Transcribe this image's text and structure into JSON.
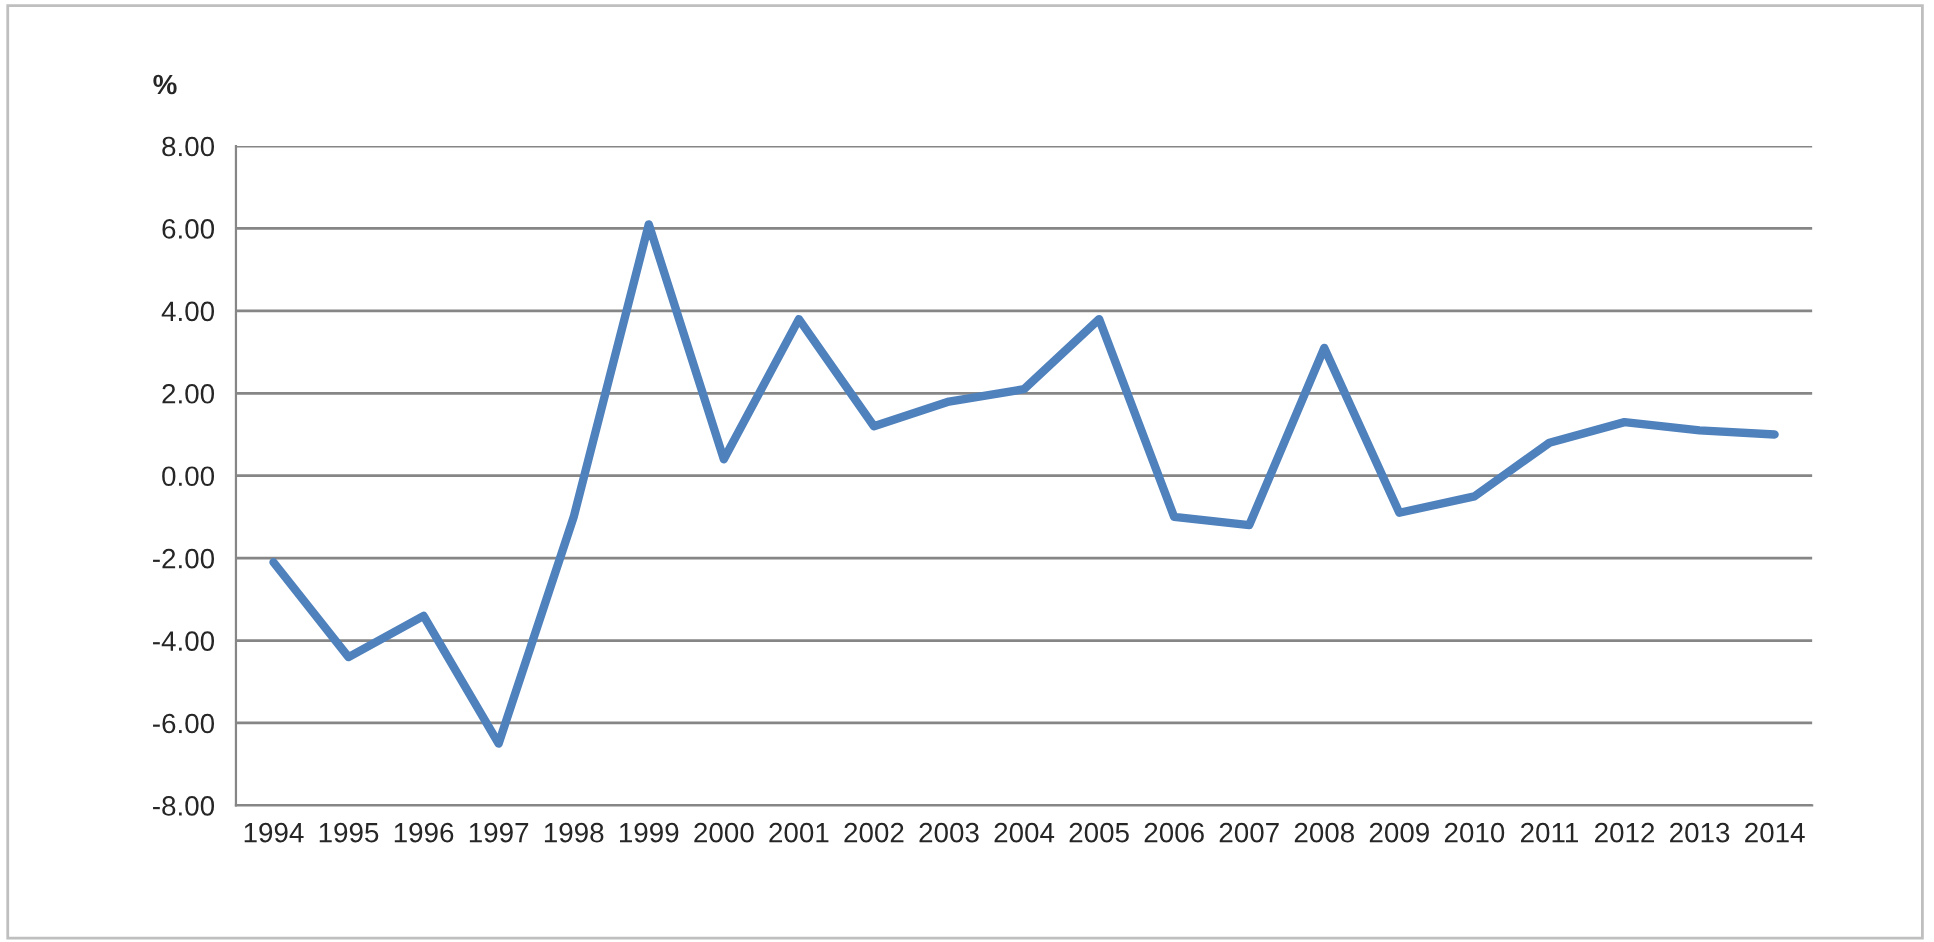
{
  "chart_data": {
    "type": "line",
    "ylabel": "%",
    "categories": [
      "1994",
      "1995",
      "1996",
      "1997",
      "1998",
      "1999",
      "2000",
      "2001",
      "2002",
      "2003",
      "2004",
      "2005",
      "2006",
      "2007",
      "2008",
      "2009",
      "2010",
      "2011",
      "2012",
      "2013",
      "2014"
    ],
    "series": [
      {
        "color": "#4f81bd",
        "values": [
          -2.1,
          -4.4,
          -3.4,
          -6.5,
          -1.0,
          6.1,
          0.4,
          3.8,
          1.2,
          1.8,
          2.1,
          3.8,
          -1.0,
          -1.2,
          3.1,
          -0.9,
          -0.5,
          0.8,
          1.3,
          1.1,
          1.0
        ]
      }
    ],
    "ylim": [
      -8,
      8
    ],
    "yticks": [
      {
        "value": -8,
        "label": "-8.00"
      },
      {
        "value": -6,
        "label": "-6.00"
      },
      {
        "value": -4,
        "label": "-4.00"
      },
      {
        "value": -2,
        "label": "-2.00"
      },
      {
        "value": 0,
        "label": "0.00"
      },
      {
        "value": 2,
        "label": "2.00"
      },
      {
        "value": 4,
        "label": "4.00"
      },
      {
        "value": 6,
        "label": "6.00"
      },
      {
        "value": 8,
        "label": "8.00"
      }
    ],
    "grid": "y",
    "marker": "none",
    "line_style": "solid"
  }
}
